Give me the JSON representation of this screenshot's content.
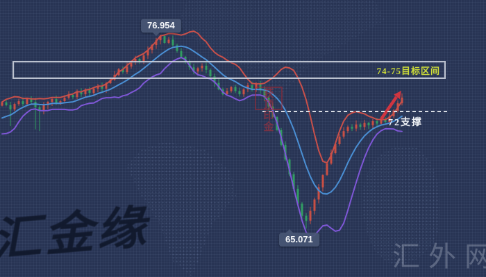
{
  "watermarks": {
    "site": "汇外网",
    "signature": "汇金缘",
    "seal": "获顶印金"
  },
  "annotations": {
    "peak_price": "76.954",
    "low_price": "65.071",
    "target_zone": "74-75目标区间",
    "support": "72支撑"
  },
  "colors": {
    "background": "#283454",
    "candle_up": "#c94f44",
    "candle_down": "#319c62",
    "band_upper": "#c9504a",
    "band_middle": "#4a8fd4",
    "band_lower": "#7e57d6",
    "target_text": "#cddc39",
    "dashed_line": "#d9dde4",
    "arrow": "#d03540"
  },
  "chart_data": {
    "type": "candlestick",
    "title": "",
    "xlabel": "",
    "ylabel": "",
    "grid": false,
    "legend": "none",
    "ylim": [
      62.1,
      79.08
    ],
    "x_start": 3,
    "x_step": 6,
    "candle_width": 3,
    "key_levels": {
      "peak": 76.954,
      "low": 65.071,
      "support": 72,
      "target_range": [
        74,
        75
      ]
    },
    "indicator": {
      "name": "BOLL",
      "period": 10,
      "mult": 1.7
    },
    "warmup_closes": [
      72.6,
      72.3,
      71.9,
      71.6,
      71.3,
      71.1,
      71.4,
      71.7,
      71.5,
      71.2,
      71.0,
      71.4,
      71.8,
      72.1,
      72.4,
      72.6
    ],
    "closes": [
      72.8,
      72.63,
      72.37,
      72.71,
      72.88,
      72.71,
      73.01,
      72.84,
      72.5,
      72.29,
      72.63,
      72.84,
      73.01,
      72.71,
      72.88,
      73.09,
      73.26,
      73.13,
      73.43,
      73.3,
      73.56,
      73.39,
      73.64,
      73.81,
      73.64,
      73.98,
      74.19,
      74.49,
      74.83,
      74.66,
      75.0,
      75.26,
      75.47,
      75.34,
      75.68,
      76.02,
      76.32,
      76.61,
      76.87,
      76.45,
      76.65,
      76.3,
      75.95,
      75.6,
      75.3,
      74.95,
      74.7,
      74.9,
      75.05,
      74.8,
      74.4,
      74.0,
      73.6,
      73.3,
      73.5,
      73.75,
      73.5,
      73.3,
      73.6,
      73.85,
      73.65,
      73.95,
      73.55,
      73.1,
      72.55,
      71.9,
      71.1,
      70.2,
      69.3,
      68.4,
      67.5,
      66.6,
      65.85,
      65.55,
      66.15,
      66.85,
      67.6,
      68.35,
      69.05,
      69.7,
      70.25,
      70.7,
      71.05,
      71.3,
      71.2,
      71.45,
      71.3,
      71.55,
      71.4,
      71.65,
      71.5,
      71.75,
      71.6,
      71.95,
      72.3,
      72.75,
      73.1
    ],
    "wick_overrides": {
      "2": {
        "low": 71.35
      },
      "8": {
        "low": 71.15
      },
      "9": {
        "low": 71.05
      },
      "38": {
        "high": 76.954
      },
      "72": {
        "low": 65.45
      },
      "73": {
        "low": 65.071
      }
    }
  }
}
